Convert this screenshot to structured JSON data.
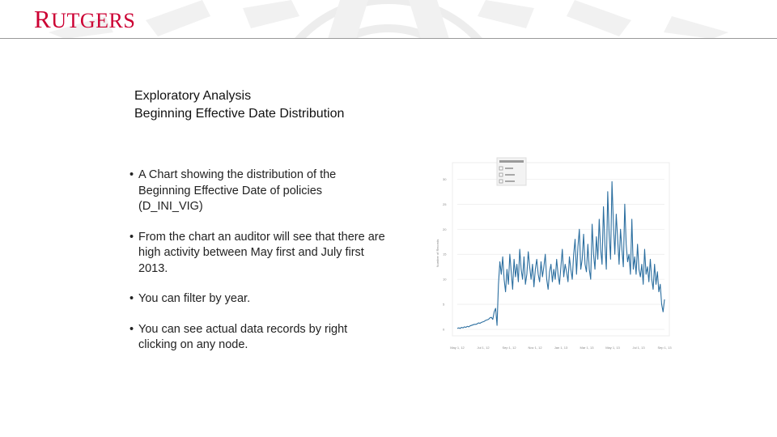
{
  "header": {
    "logo_text": "Rutgers"
  },
  "slide": {
    "title_line1": "Exploratory Analysis",
    "title_line2": "Beginning Effective Date Distribution",
    "bullets": [
      {
        "text": "A Chart showing the distribution of the Beginning Effective Date of policies (D_INI_VIG)"
      },
      {
        "text": "From the chart an auditor will see that there are high activity between May first and July first 2013."
      },
      {
        "text": "You can filter by year."
      },
      {
        "text": "You can see actual data records by right clicking on any node."
      }
    ]
  },
  "colors": {
    "brand": "#cc0033",
    "series": "#2c6fa0",
    "grid": "#e6e6e6"
  },
  "chart_data": {
    "type": "line",
    "x_tick_labels": [
      "May 1, 12",
      "Jul 1, 12",
      "Sep 1, 12",
      "Nov 1, 12",
      "Jan 1, 13",
      "Mar 1, 13",
      "May 1, 13",
      "Jul 1, 13",
      "Sep 1, 13"
    ],
    "y_tick_labels": [
      "0",
      "5",
      "10",
      "15",
      "20",
      "25",
      "30"
    ],
    "ylim": [
      0,
      32
    ],
    "ylabel": "Number of Records",
    "legend_placement": "top-left",
    "grid": true,
    "series": [
      {
        "values": [
          0.2,
          0.3,
          0.2,
          0.4,
          0.3,
          0.5,
          0.4,
          0.6,
          0.5,
          0.7,
          0.8,
          0.9,
          1.0,
          1.0,
          1.1,
          1.3,
          1.2,
          1.4,
          1.5,
          1.6,
          1.8,
          1.9,
          2.0,
          2.3,
          2.4,
          2.0,
          3.5,
          4.2,
          0.8,
          9.0,
          13.5,
          11.0,
          14.5,
          10.0,
          7.5,
          12.0,
          9.0,
          15.0,
          11.5,
          8.0,
          14.0,
          10.5,
          13.0,
          9.5,
          16.0,
          12.0,
          10.0,
          14.5,
          9.0,
          11.0,
          15.5,
          12.5,
          10.0,
          13.0,
          8.5,
          12.0,
          14.0,
          11.0,
          9.5,
          13.5,
          10.5,
          12.5,
          15.0,
          10.0,
          8.0,
          11.5,
          13.0,
          9.5,
          12.0,
          10.0,
          14.0,
          11.0,
          9.0,
          12.5,
          16.0,
          10.5,
          13.0,
          11.5,
          9.5,
          14.5,
          12.0,
          10.0,
          15.0,
          18.0,
          11.0,
          16.5,
          20.0,
          12.0,
          14.0,
          19.0,
          13.0,
          11.5,
          17.0,
          12.0,
          10.0,
          21.0,
          15.0,
          12.0,
          18.5,
          14.0,
          22.0,
          16.0,
          13.0,
          24.5,
          17.0,
          12.0,
          27.5,
          19.0,
          14.0,
          29.5,
          21.0,
          15.0,
          23.0,
          18.0,
          13.0,
          20.0,
          16.0,
          12.5,
          25.0,
          17.0,
          13.5,
          15.0,
          11.0,
          22.0,
          12.0,
          14.5,
          11.0,
          17.0,
          12.0,
          10.5,
          13.0,
          9.0,
          16.0,
          11.0,
          12.5,
          9.5,
          14.0,
          10.0,
          8.0,
          13.0,
          9.0,
          11.5,
          7.5,
          9.0,
          5.0,
          3.5,
          6.0
        ]
      }
    ]
  }
}
